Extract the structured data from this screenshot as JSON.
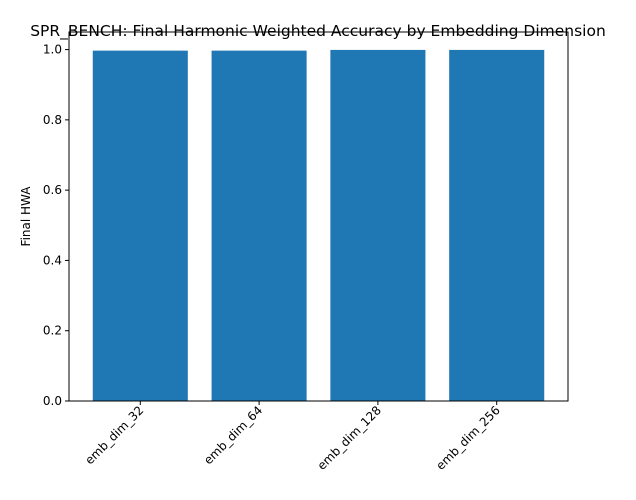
{
  "chart_data": {
    "type": "bar",
    "title": "SPR_BENCH: Final Harmonic Weighted Accuracy by Embedding Dimension",
    "xlabel": "",
    "ylabel": "Final HWA",
    "categories": [
      "emb_dim_32",
      "emb_dim_64",
      "emb_dim_128",
      "emb_dim_256"
    ],
    "values": [
      0.997,
      0.997,
      0.999,
      0.999
    ],
    "ylim": [
      0,
      1.05
    ],
    "yticks": [
      0.0,
      0.2,
      0.4,
      0.6,
      0.8,
      1.0
    ],
    "ytick_labels": [
      "0.0",
      "0.2",
      "0.4",
      "0.6",
      "0.8",
      "1.0"
    ],
    "bar_color": "#1f77b4",
    "grid": false,
    "xtick_rotation": "45 degrees"
  }
}
